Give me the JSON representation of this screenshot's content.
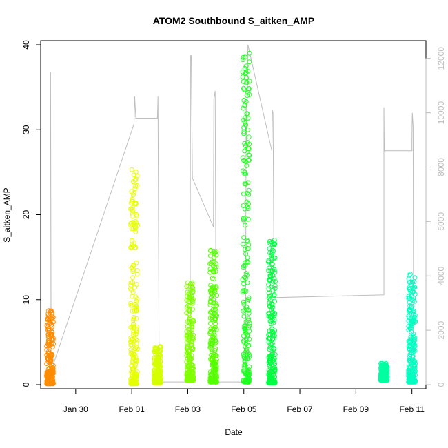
{
  "chart_data": {
    "type": "scatter",
    "title": "ATOM2 Southbound S_aitken_AMP",
    "xlabel": "Date",
    "ylabel": "S_aitken_AMP",
    "xlim": [
      "2017-01-28T18:00",
      "2017-02-11T12:00"
    ],
    "ylim": [
      0,
      40
    ],
    "x_ticks": [
      {
        "date": "2017-01-30",
        "label": "Jan 30"
      },
      {
        "date": "2017-02-01",
        "label": "Feb 01"
      },
      {
        "date": "2017-02-03",
        "label": "Feb 03"
      },
      {
        "date": "2017-02-05",
        "label": "Feb 05"
      },
      {
        "date": "2017-02-07",
        "label": "Feb 07"
      },
      {
        "date": "2017-02-09",
        "label": "Feb 09"
      },
      {
        "date": "2017-02-11",
        "label": "Feb 11"
      }
    ],
    "y_ticks": [
      0,
      10,
      20,
      30,
      40
    ],
    "y2_ticks": [
      0,
      2000,
      4000,
      6000,
      8000,
      10000,
      12000
    ],
    "y2lim": [
      0,
      12500
    ],
    "secondary_color": "#bebebe",
    "clusters": [
      {
        "date": "2017-01-29T02:00",
        "min": 0.1,
        "max": 8.7,
        "color": "#ff8c00"
      },
      {
        "date": "2017-02-01T02:00",
        "min": 0.1,
        "max": 25.3,
        "color": "#e6ff00"
      },
      {
        "date": "2017-02-01T22:00",
        "min": 0.2,
        "max": 4.5,
        "color": "#d5ff00"
      },
      {
        "date": "2017-02-03T02:00",
        "min": 0.5,
        "max": 12.0,
        "color": "#80ff00"
      },
      {
        "date": "2017-02-03T22:00",
        "min": 0.3,
        "max": 15.8,
        "color": "#55ff00"
      },
      {
        "date": "2017-02-05T02:00",
        "min": 0.3,
        "max": 39.0,
        "color": "#22ff22"
      },
      {
        "date": "2017-02-06T00:00",
        "min": 0.2,
        "max": 17.0,
        "color": "#00ff40"
      },
      {
        "date": "2017-02-10T00:00",
        "min": 0.5,
        "max": 2.5,
        "color": "#00ffa0"
      },
      {
        "date": "2017-02-11T00:00",
        "min": 0.3,
        "max": 13.0,
        "color": "#00ffc0"
      }
    ],
    "secondary_series": [
      {
        "date": "2017-01-29T02:00",
        "value": 500
      },
      {
        "date": "2017-01-29T02:00",
        "value": 11400
      },
      {
        "date": "2017-01-29T02:30",
        "value": 11500
      },
      {
        "date": "2017-01-29T03:00",
        "value": 500
      },
      {
        "date": "2017-02-01T02:00",
        "value": 9600
      },
      {
        "date": "2017-02-01T02:30",
        "value": 10600
      },
      {
        "date": "2017-02-01T03:30",
        "value": 9800
      },
      {
        "date": "2017-02-01T22:00",
        "value": 9800
      },
      {
        "date": "2017-02-01T22:30",
        "value": 10600
      },
      {
        "date": "2017-02-01T23:30",
        "value": 100
      },
      {
        "date": "2017-02-03T02:00",
        "value": 100
      },
      {
        "date": "2017-02-03T02:20",
        "value": 12100
      },
      {
        "date": "2017-02-03T03:00",
        "value": 12100
      },
      {
        "date": "2017-02-03T04:00",
        "value": 7600
      },
      {
        "date": "2017-02-03T22:00",
        "value": 5800
      },
      {
        "date": "2017-02-03T22:20",
        "value": 10500
      },
      {
        "date": "2017-02-03T23:30",
        "value": 10800
      },
      {
        "date": "2017-02-04T00:30",
        "value": 100
      },
      {
        "date": "2017-02-05T01:30",
        "value": 100
      },
      {
        "date": "2017-02-05T02:00",
        "value": 10500
      },
      {
        "date": "2017-02-05T02:30",
        "value": 8700
      },
      {
        "date": "2017-02-05T03:30",
        "value": 12500
      },
      {
        "date": "2017-02-06T00:00",
        "value": 8600
      },
      {
        "date": "2017-02-06T00:20",
        "value": 10100
      },
      {
        "date": "2017-02-06T01:00",
        "value": 10000
      },
      {
        "date": "2017-02-06T02:00",
        "value": 3200
      },
      {
        "date": "2017-02-10T00:00",
        "value": 3300
      },
      {
        "date": "2017-02-10T00:00",
        "value": 10200
      },
      {
        "date": "2017-02-10T00:20",
        "value": 8600
      },
      {
        "date": "2017-02-11T00:00",
        "value": 8600
      },
      {
        "date": "2017-02-11T00:00",
        "value": 9000
      },
      {
        "date": "2017-02-11T00:20",
        "value": 10000
      },
      {
        "date": "2017-02-11T01:00",
        "value": 9500
      },
      {
        "date": "2017-02-11T01:30",
        "value": 100
      }
    ]
  }
}
